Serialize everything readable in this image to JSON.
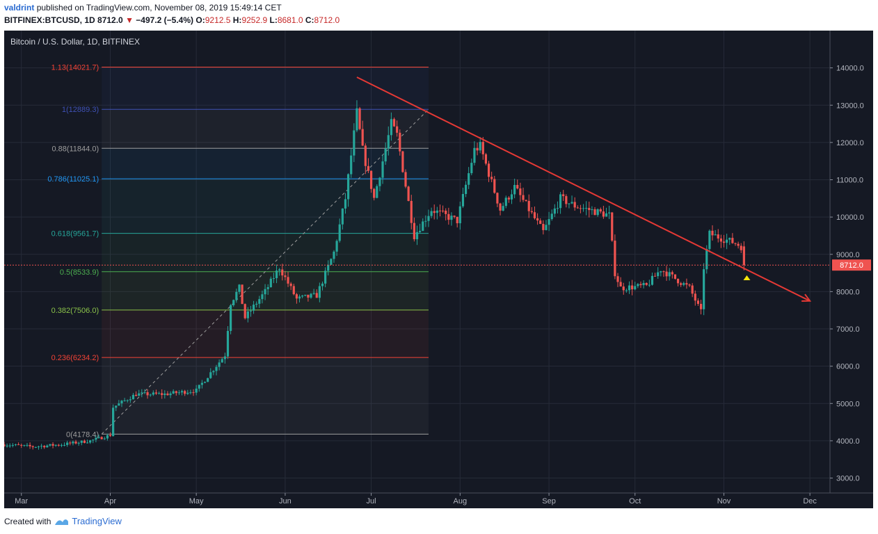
{
  "header": {
    "author": "valdrint",
    "published_text": "published on TradingView.com, November 08, 2019 15:49:14 CET",
    "symbol": "BITFINEX:BTCUSD, 1D",
    "last": "8712.0",
    "change": "−497.2 (−5.4%)",
    "o_label": "O:",
    "o_value": "9212.5",
    "h_label": "H:",
    "h_value": "9252.9",
    "l_label": "L:",
    "l_value": "8681.0",
    "c_label": "C:",
    "c_value": "8712.0"
  },
  "footer": {
    "created_with": "Created with",
    "brand": "TradingView"
  },
  "colors": {
    "bg": "#151924",
    "grid": "#262b38",
    "up": "#26a69a",
    "down": "#ef5350",
    "trend": "#e53935",
    "price_tag": "#ef5350",
    "marker": "#f5e50a"
  },
  "chart_data": {
    "type": "candlestick",
    "title": "Bitcoin / U.S. Dollar, 1D, BITFINEX",
    "ylim": [
      2600,
      15000
    ],
    "y_ticks": [
      3000,
      4000,
      5000,
      6000,
      7000,
      8000,
      9000,
      10000,
      11000,
      12000,
      13000,
      14000
    ],
    "y_tick_labels": [
      "3000.0",
      "4000.0",
      "5000.0",
      "6000.0",
      "7000.0",
      "8000.0",
      "9000.0",
      "10000.0",
      "11000.0",
      "12000.0",
      "13000.0",
      "14000.0"
    ],
    "x_range": [
      "2019-02-23",
      "2019-12-08"
    ],
    "x_ticks": [
      {
        "date": "2019-03-01",
        "label": "Mar"
      },
      {
        "date": "2019-04-01",
        "label": "Apr"
      },
      {
        "date": "2019-05-01",
        "label": "May"
      },
      {
        "date": "2019-06-01",
        "label": "Jun"
      },
      {
        "date": "2019-07-01",
        "label": "Jul"
      },
      {
        "date": "2019-08-01",
        "label": "Aug"
      },
      {
        "date": "2019-09-01",
        "label": "Sep"
      },
      {
        "date": "2019-10-01",
        "label": "Oct"
      },
      {
        "date": "2019-11-01",
        "label": "Nov"
      },
      {
        "date": "2019-12-01",
        "label": "Dec"
      }
    ],
    "current_price": 8712.0,
    "current_price_label": "8712.0",
    "fibonacci": {
      "start_date": "2019-03-29",
      "end_date": "2019-07-21",
      "anchor_low": {
        "date": "2019-03-29",
        "value": 4178.4
      },
      "anchor_high": {
        "date": "2019-07-21",
        "value": 12889.3
      },
      "levels": [
        {
          "label": "1.13(14021.7)",
          "value": 14021.7,
          "color": "#f44336"
        },
        {
          "label": "1(12889.3)",
          "value": 12889.3,
          "color": "#3f51b5"
        },
        {
          "label": "0.88(11844.0)",
          "value": 11844.0,
          "color": "#9e9e9e"
        },
        {
          "label": "0.786(11025.1)",
          "value": 11025.1,
          "color": "#2196f3"
        },
        {
          "label": "0.618(9561.7)",
          "value": 9561.7,
          "color": "#26a69a"
        },
        {
          "label": "0.5(8533.9)",
          "value": 8533.9,
          "color": "#4caf50"
        },
        {
          "label": "0.382(7506.0)",
          "value": 7506.0,
          "color": "#8bc34a"
        },
        {
          "label": "0.236(6234.2)",
          "value": 6234.2,
          "color": "#f44336"
        },
        {
          "label": "0(4178.4)",
          "value": 4178.4,
          "color": "#9e9e9e"
        }
      ]
    },
    "trendline": {
      "start": {
        "date": "2019-06-26",
        "value": 13750
      },
      "end": {
        "date": "2019-12-01",
        "value": 7750
      }
    },
    "marker": {
      "date": "2019-11-09",
      "value": 8380
    },
    "keypoints": [
      {
        "date": "2019-02-23",
        "value": 3900
      },
      {
        "date": "2019-03-05",
        "value": 3840
      },
      {
        "date": "2019-03-15",
        "value": 3900
      },
      {
        "date": "2019-03-25",
        "value": 4000
      },
      {
        "date": "2019-04-01",
        "value": 4150
      },
      {
        "date": "2019-04-02",
        "value": 4900
      },
      {
        "date": "2019-04-10",
        "value": 5250
      },
      {
        "date": "2019-04-20",
        "value": 5250
      },
      {
        "date": "2019-05-01",
        "value": 5350
      },
      {
        "date": "2019-05-11",
        "value": 6300
      },
      {
        "date": "2019-05-13",
        "value": 7700
      },
      {
        "date": "2019-05-16",
        "value": 8100
      },
      {
        "date": "2019-05-18",
        "value": 7300
      },
      {
        "date": "2019-05-25",
        "value": 8000
      },
      {
        "date": "2019-05-30",
        "value": 8650
      },
      {
        "date": "2019-06-05",
        "value": 7800
      },
      {
        "date": "2019-06-12",
        "value": 7900
      },
      {
        "date": "2019-06-18",
        "value": 9050
      },
      {
        "date": "2019-06-22",
        "value": 10500
      },
      {
        "date": "2019-06-26",
        "value": 12800
      },
      {
        "date": "2019-06-28",
        "value": 11800
      },
      {
        "date": "2019-07-02",
        "value": 10500
      },
      {
        "date": "2019-07-08",
        "value": 12500
      },
      {
        "date": "2019-07-10",
        "value": 12200
      },
      {
        "date": "2019-07-16",
        "value": 9500
      },
      {
        "date": "2019-07-22",
        "value": 10200
      },
      {
        "date": "2019-07-31",
        "value": 9900
      },
      {
        "date": "2019-08-06",
        "value": 11800
      },
      {
        "date": "2019-08-08",
        "value": 11900
      },
      {
        "date": "2019-08-15",
        "value": 10200
      },
      {
        "date": "2019-08-20",
        "value": 10800
      },
      {
        "date": "2019-08-30",
        "value": 9600
      },
      {
        "date": "2019-09-05",
        "value": 10500
      },
      {
        "date": "2019-09-10",
        "value": 10300
      },
      {
        "date": "2019-09-22",
        "value": 10050
      },
      {
        "date": "2019-09-24",
        "value": 8500
      },
      {
        "date": "2019-09-26",
        "value": 8100
      },
      {
        "date": "2019-10-05",
        "value": 8150
      },
      {
        "date": "2019-10-10",
        "value": 8600
      },
      {
        "date": "2019-10-20",
        "value": 8100
      },
      {
        "date": "2019-10-24",
        "value": 7450
      },
      {
        "date": "2019-10-25",
        "value": 8650
      },
      {
        "date": "2019-10-27",
        "value": 9550
      },
      {
        "date": "2019-11-05",
        "value": 9300
      },
      {
        "date": "2019-11-07",
        "value": 9210
      },
      {
        "date": "2019-11-08",
        "value": 8712
      }
    ]
  }
}
